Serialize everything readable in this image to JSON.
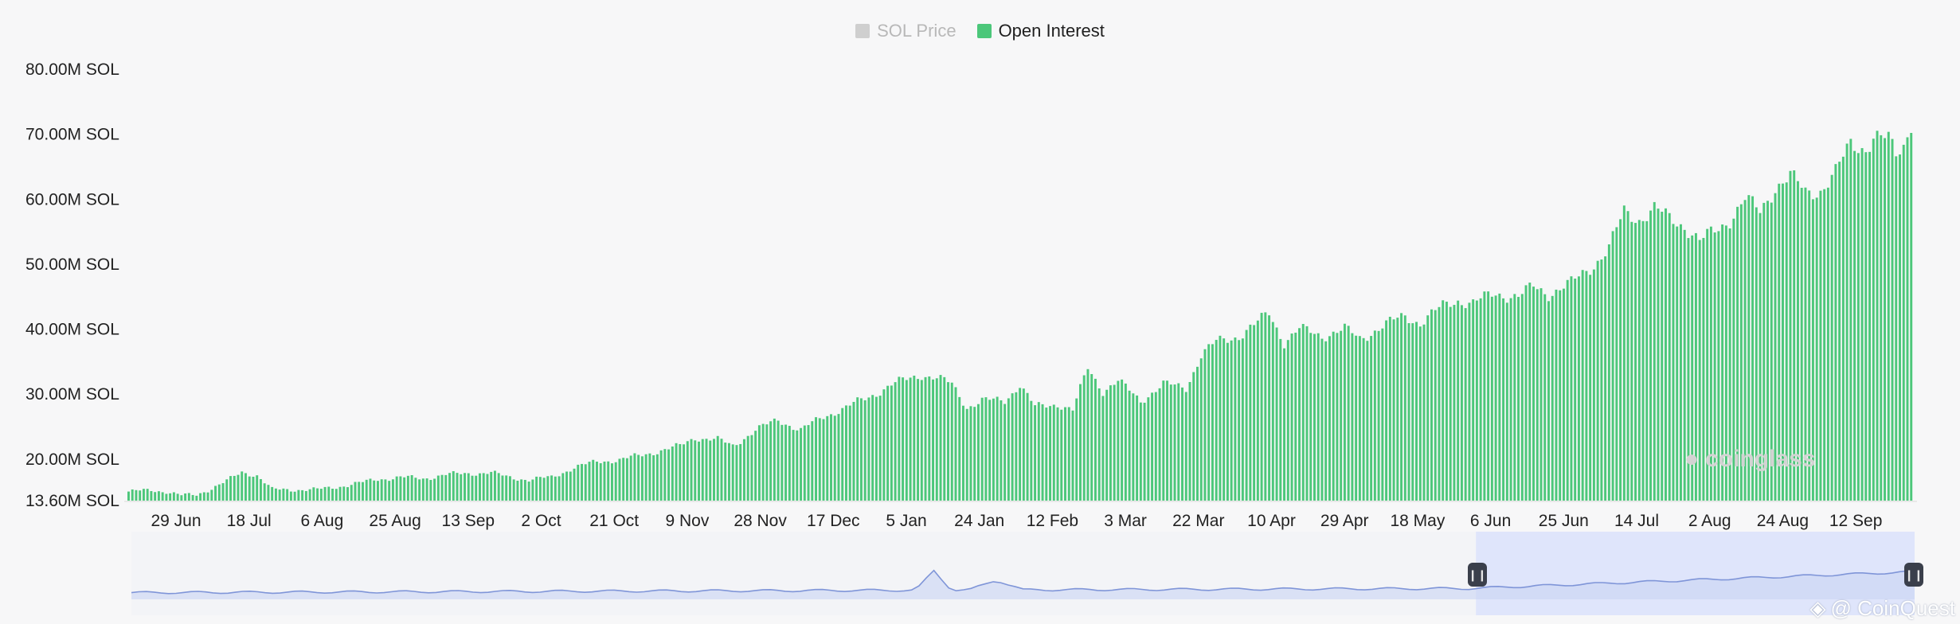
{
  "legend": {
    "items": [
      {
        "label": "SOL Price",
        "color": "#cfcfcf",
        "active": false
      },
      {
        "label": "Open Interest",
        "color": "#4cc77a",
        "active": true
      }
    ]
  },
  "watermark": "coinglass",
  "credit": "@ CoinQuest",
  "chart_data": {
    "type": "bar",
    "title": "",
    "xlabel": "",
    "ylabel": "",
    "ylim": [
      13.6,
      80
    ],
    "y_ticks": [
      "80.00M SOL",
      "70.00M SOL",
      "60.00M SOL",
      "50.00M SOL",
      "40.00M SOL",
      "30.00M SOL",
      "20.00M SOL",
      "13.60M SOL"
    ],
    "y_tick_values": [
      80,
      70,
      60,
      50,
      40,
      30,
      20,
      13.6
    ],
    "x_ticks": [
      "29 Jun",
      "18 Jul",
      "6 Aug",
      "25 Aug",
      "13 Sep",
      "2 Oct",
      "21 Oct",
      "9 Nov",
      "28 Nov",
      "17 Dec",
      "5 Jan",
      "24 Jan",
      "12 Feb",
      "3 Mar",
      "22 Mar",
      "10 Apr",
      "29 Apr",
      "18 May",
      "6 Jun",
      "25 Jun",
      "14 Jul",
      "2 Aug",
      "24 Aug",
      "12 Sep"
    ],
    "series": [
      {
        "name": "Open Interest",
        "color": "#4cc77a",
        "unit": "M SOL",
        "anchors": [
          [
            0,
            15.0
          ],
          [
            6,
            15.2
          ],
          [
            10,
            15.0
          ],
          [
            14,
            14.4
          ],
          [
            18,
            14.5
          ],
          [
            22,
            15.5
          ],
          [
            26,
            16.6
          ],
          [
            30,
            18.0
          ],
          [
            34,
            17.5
          ],
          [
            38,
            15.3
          ],
          [
            44,
            15.3
          ],
          [
            50,
            15.3
          ],
          [
            56,
            15.8
          ],
          [
            62,
            16.4
          ],
          [
            66,
            16.9
          ],
          [
            72,
            17.2
          ],
          [
            78,
            17.0
          ],
          [
            84,
            17.6
          ],
          [
            90,
            17.8
          ],
          [
            96,
            17.9
          ],
          [
            100,
            17.3
          ],
          [
            106,
            16.8
          ],
          [
            112,
            17.2
          ],
          [
            118,
            18.7
          ],
          [
            124,
            19.6
          ],
          [
            130,
            19.9
          ],
          [
            136,
            20.6
          ],
          [
            140,
            21.2
          ],
          [
            146,
            22.0
          ],
          [
            150,
            23.3
          ],
          [
            156,
            23.0
          ],
          [
            160,
            22.0
          ],
          [
            166,
            24.5
          ],
          [
            172,
            26.0
          ],
          [
            178,
            24.5
          ],
          [
            184,
            26.5
          ],
          [
            190,
            28.0
          ],
          [
            196,
            29.5
          ],
          [
            202,
            31.5
          ],
          [
            206,
            32.2
          ],
          [
            210,
            33.0
          ],
          [
            214,
            32.5
          ],
          [
            218,
            31.5
          ],
          [
            222,
            28.0
          ],
          [
            226,
            29.0
          ],
          [
            232,
            29.0
          ],
          [
            236,
            31.5
          ],
          [
            240,
            28.0
          ],
          [
            246,
            28.5
          ],
          [
            250,
            27.5
          ],
          [
            254,
            34.0
          ],
          [
            258,
            30.5
          ],
          [
            262,
            32.0
          ],
          [
            268,
            29.0
          ],
          [
            274,
            31.5
          ],
          [
            280,
            31.0
          ],
          [
            284,
            36.0
          ],
          [
            288,
            38.0
          ],
          [
            294,
            39.0
          ],
          [
            298,
            40.5
          ],
          [
            302,
            42.5
          ],
          [
            306,
            38.0
          ],
          [
            310,
            40.0
          ],
          [
            316,
            39.0
          ],
          [
            322,
            40.0
          ],
          [
            326,
            38.5
          ],
          [
            332,
            40.5
          ],
          [
            338,
            42.0
          ],
          [
            342,
            41.0
          ],
          [
            348,
            43.5
          ],
          [
            352,
            44.5
          ],
          [
            356,
            44.0
          ],
          [
            362,
            45.5
          ],
          [
            368,
            45.0
          ],
          [
            372,
            46.5
          ],
          [
            376,
            45.5
          ],
          [
            382,
            47.0
          ],
          [
            388,
            50.0
          ],
          [
            392,
            52.5
          ],
          [
            396,
            58.0
          ],
          [
            400,
            57.0
          ],
          [
            404,
            58.5
          ],
          [
            408,
            57.0
          ],
          [
            412,
            56.0
          ],
          [
            416,
            53.5
          ],
          [
            420,
            55.0
          ],
          [
            424,
            57.0
          ],
          [
            428,
            60.0
          ],
          [
            432,
            58.0
          ],
          [
            436,
            62.0
          ],
          [
            440,
            63.5
          ],
          [
            444,
            61.0
          ],
          [
            448,
            61.5
          ],
          [
            452,
            64.0
          ],
          [
            456,
            68.5
          ],
          [
            460,
            68.0
          ],
          [
            462,
            69.5
          ],
          [
            466,
            69.0
          ],
          [
            468,
            67.0
          ],
          [
            470,
            68.5
          ],
          [
            472,
            72.0
          ]
        ],
        "bar_count": 473
      }
    ],
    "navigator": {
      "description_label": "",
      "selection_range_fraction": [
        0.754,
        1.0
      ]
    },
    "grid": false,
    "legend_position": "top-center"
  }
}
